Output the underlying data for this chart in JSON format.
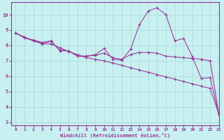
{
  "background_color": "#c8f0f0",
  "grid_color": "#a8d8d8",
  "line_color": "#993399",
  "xlabel": "Windchill (Refroidissement éolien,°C)",
  "xlim": [
    -0.5,
    23
  ],
  "ylim": [
    2.8,
    10.8
  ],
  "yticks": [
    3,
    4,
    5,
    6,
    7,
    8,
    9,
    10
  ],
  "xticks": [
    0,
    1,
    2,
    3,
    4,
    5,
    6,
    7,
    8,
    9,
    10,
    11,
    12,
    13,
    14,
    15,
    16,
    17,
    18,
    19,
    20,
    21,
    22,
    23
  ],
  "line1_x": [
    0,
    1,
    2,
    3,
    4,
    5,
    6,
    7,
    8,
    9,
    10,
    11,
    12,
    13,
    14,
    15,
    16,
    17,
    18,
    19,
    20,
    21,
    22,
    23
  ],
  "line1_y": [
    8.8,
    8.5,
    8.35,
    8.2,
    8.3,
    7.65,
    7.65,
    7.3,
    7.3,
    7.4,
    7.8,
    7.1,
    7.05,
    7.75,
    9.35,
    10.25,
    10.45,
    10.0,
    8.3,
    8.45,
    7.25,
    5.85,
    5.9,
    3.5
  ],
  "line2_x": [
    0,
    1,
    2,
    3,
    4,
    5,
    6,
    7,
    8,
    9,
    10,
    11,
    12,
    13,
    14,
    15,
    16,
    17,
    18,
    19,
    20,
    21,
    22,
    23
  ],
  "line2_y": [
    8.8,
    8.55,
    8.3,
    8.1,
    8.1,
    7.85,
    7.6,
    7.4,
    7.2,
    7.1,
    7.0,
    6.85,
    6.7,
    6.55,
    6.4,
    6.25,
    6.1,
    5.95,
    5.8,
    5.65,
    5.5,
    5.35,
    5.2,
    3.5
  ],
  "line3_x": [
    0,
    1,
    2,
    3,
    4,
    5,
    6,
    7,
    8,
    9,
    10,
    11,
    12,
    13,
    14,
    15,
    16,
    17,
    18,
    19,
    20,
    21,
    22,
    23
  ],
  "line3_y": [
    8.8,
    8.5,
    8.3,
    8.15,
    8.25,
    7.7,
    7.65,
    7.3,
    7.3,
    7.35,
    7.5,
    7.2,
    7.1,
    7.4,
    7.55,
    7.55,
    7.5,
    7.3,
    7.25,
    7.2,
    7.15,
    7.1,
    7.0,
    3.5
  ]
}
